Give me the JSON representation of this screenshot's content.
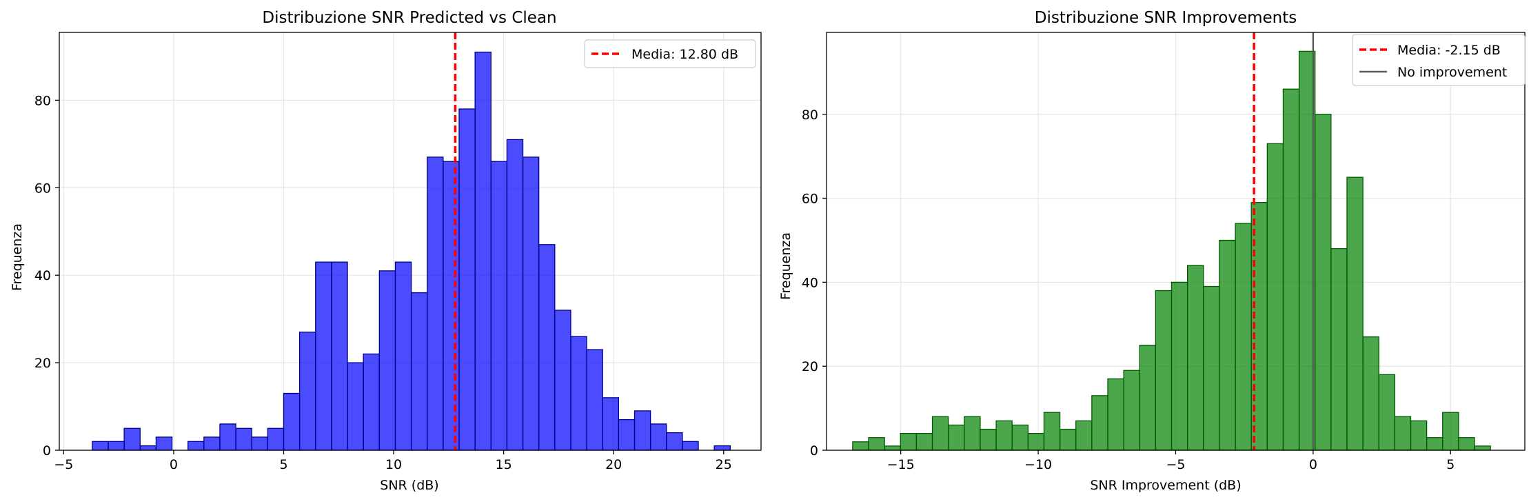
{
  "chart_data": [
    {
      "type": "histogram",
      "title": "Distribuzione SNR Predicted vs Clean",
      "xlabel": "SNR (dB)",
      "ylabel": "Frequenza",
      "xlim": [
        -5.2,
        26.7
      ],
      "ylim": [
        0,
        95.5
      ],
      "xticks": [
        -5,
        0,
        5,
        10,
        15,
        20,
        25
      ],
      "yticks": [
        0,
        20,
        40,
        60,
        80
      ],
      "grid": true,
      "legend_position": "top-right",
      "bar_color": "#0000ff",
      "bar_edge_color": "#00008b",
      "bins_start": -3.7,
      "bin_width": 0.725,
      "counts": [
        2,
        2,
        5,
        1,
        3,
        0,
        2,
        3,
        6,
        5,
        3,
        5,
        13,
        27,
        43,
        43,
        20,
        22,
        41,
        43,
        36,
        67,
        66,
        78,
        91,
        66,
        71,
        67,
        47,
        32,
        26,
        23,
        12,
        7,
        9,
        6,
        4,
        2,
        0,
        1
      ],
      "mean_line": {
        "value": 12.8,
        "label": "Media: 12.80 dB",
        "color": "#ff0000"
      }
    },
    {
      "type": "histogram",
      "title": "Distribuzione SNR Improvements",
      "xlabel": "SNR Improvement (dB)",
      "ylabel": "Frequenza",
      "xlim": [
        -17.7,
        7.7
      ],
      "ylim": [
        0,
        99.5
      ],
      "xticks": [
        -15,
        -10,
        -5,
        0,
        5
      ],
      "yticks": [
        0,
        20,
        40,
        60,
        80
      ],
      "grid": true,
      "legend_position": "top-right",
      "bar_color": "#008000",
      "bar_edge_color": "#005a00",
      "bins_start": -16.75,
      "bin_width": 0.58,
      "counts": [
        2,
        3,
        1,
        4,
        4,
        8,
        6,
        8,
        5,
        7,
        6,
        4,
        9,
        5,
        7,
        13,
        17,
        19,
        25,
        38,
        40,
        44,
        39,
        50,
        54,
        59,
        73,
        86,
        95,
        80,
        48,
        65,
        27,
        18,
        8,
        7,
        3,
        9,
        3,
        1
      ],
      "mean_line": {
        "value": -2.15,
        "label": "Media: -2.15 dB",
        "color": "#ff0000"
      },
      "reference_line": {
        "value": 0,
        "label": "No improvement",
        "color": "#595959"
      }
    }
  ]
}
